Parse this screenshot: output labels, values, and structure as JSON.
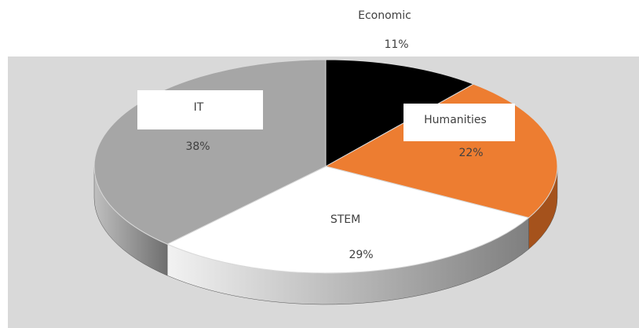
{
  "chart_data": {
    "type": "pie3d",
    "categories": [
      "Economic",
      "Humanities",
      "STEM",
      "IT"
    ],
    "values": [
      11,
      22,
      29,
      38
    ],
    "value_labels": [
      "11%",
      "22%",
      "29%",
      "38%"
    ],
    "colors": [
      "#000000",
      "#ed7d31",
      "#ffffff",
      "#a6a6a6"
    ]
  }
}
